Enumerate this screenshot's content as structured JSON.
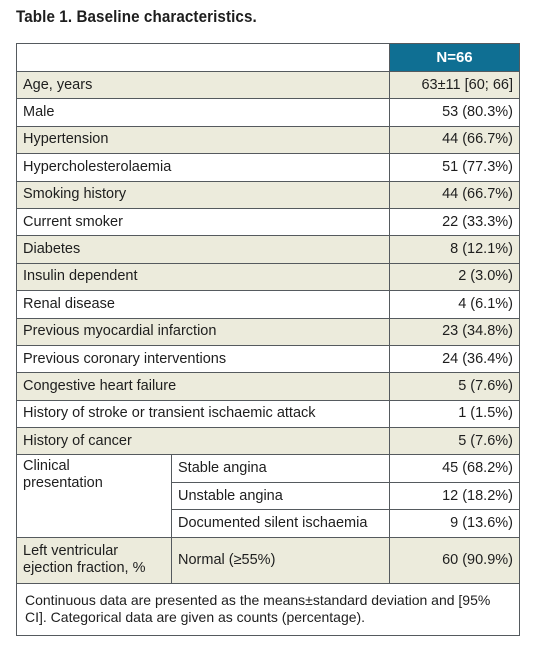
{
  "title": "Table 1. Baseline characteristics.",
  "header": {
    "n_label": "N=66"
  },
  "rows": [
    {
      "label": "Age, years",
      "value": "63±11 [60; 66]"
    },
    {
      "label": "Male",
      "value": "53 (80.3%)"
    },
    {
      "label": "Hypertension",
      "value": "44 (66.7%)"
    },
    {
      "label": "Hypercholesterolaemia",
      "value": "51 (77.3%)"
    },
    {
      "label": "Smoking history",
      "value": "44 (66.7%)"
    },
    {
      "label": "Current smoker",
      "value": "22 (33.3%)"
    },
    {
      "label": "Diabetes",
      "value": "8 (12.1%)"
    },
    {
      "label": "Insulin dependent",
      "value": "2 (3.0%)"
    },
    {
      "label": "Renal disease",
      "value": "4 (6.1%)"
    },
    {
      "label": "Previous myocardial infarction",
      "value": "23 (34.8%)"
    },
    {
      "label": "Previous coronary interventions",
      "value": "24 (36.4%)"
    },
    {
      "label": "Congestive heart failure",
      "value": "5 (7.6%)"
    },
    {
      "label": "History of stroke or transient ischaemic attack",
      "value": "1 (1.5%)"
    },
    {
      "label": "History of cancer",
      "value": "5 (7.6%)"
    }
  ],
  "clinical": {
    "label_line1": "Clinical",
    "label_line2": "presentation",
    "sub": [
      {
        "label": "Stable angina",
        "value": "45 (68.2%)"
      },
      {
        "label": "Unstable angina",
        "value": "12 (18.2%)"
      },
      {
        "label": "Documented silent ischaemia",
        "value": "9 (13.6%)"
      }
    ]
  },
  "lvef": {
    "label_line1": "Left ventricular",
    "label_line2": "ejection fraction, %",
    "sub_label": "Normal (≥55%)",
    "value": "60 (90.9%)"
  },
  "footnote": "Continuous data are presented as the means±standard deviation and [95% CI]. Categorical data are given as counts (percentage)."
}
